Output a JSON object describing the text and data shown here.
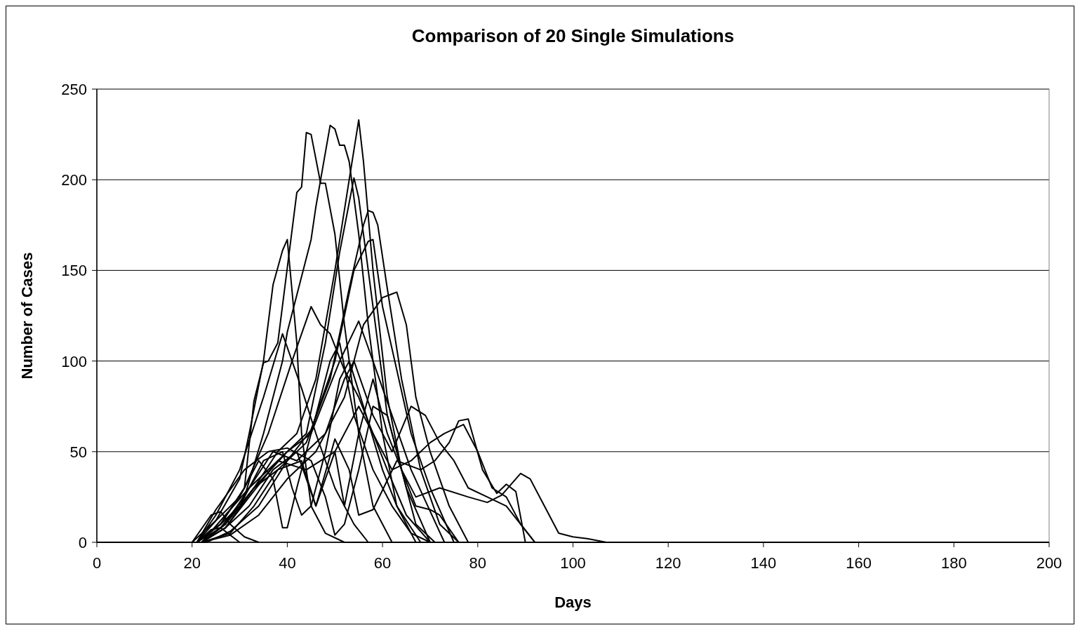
{
  "chart_data": {
    "type": "line",
    "title": "Comparison of 20 Single Simulations",
    "xlabel": "Days",
    "ylabel": "Number of Cases",
    "xlim": [
      0,
      200
    ],
    "xticks": [
      0,
      20,
      40,
      60,
      80,
      100,
      120,
      140,
      160,
      180,
      200
    ],
    "ylim": [
      0,
      250
    ],
    "yticks": [
      0,
      50,
      100,
      150,
      200,
      250
    ],
    "grid": "y",
    "marker": "none",
    "line_style": "solid",
    "series": [
      {
        "color": "#000000",
        "x": [
          0,
          20,
          25,
          30,
          32,
          35,
          37,
          39,
          40,
          42,
          43,
          45,
          48,
          52,
          200
        ],
        "values": [
          0,
          0,
          12,
          35,
          60,
          100,
          142,
          161,
          167,
          110,
          60,
          20,
          5,
          0,
          0
        ]
      },
      {
        "color": "#000000",
        "x": [
          0,
          21,
          26,
          31,
          33,
          35,
          36,
          38,
          42,
          43,
          44,
          45,
          47,
          48,
          50,
          52,
          55,
          58,
          62,
          200
        ],
        "values": [
          0,
          0,
          10,
          30,
          78,
          99,
          100,
          110,
          193,
          196,
          226,
          225,
          198,
          198,
          170,
          120,
          60,
          20,
          0,
          0
        ]
      },
      {
        "color": "#000000",
        "x": [
          0,
          21,
          26,
          31,
          35,
          39,
          40,
          45,
          46,
          47,
          49,
          50,
          51,
          52,
          53,
          55,
          57,
          60,
          63,
          67,
          200
        ],
        "values": [
          0,
          0,
          8,
          25,
          60,
          100,
          116,
          167,
          185,
          200,
          230,
          228,
          219,
          219,
          210,
          170,
          120,
          60,
          20,
          0,
          0
        ]
      },
      {
        "color": "#000000",
        "x": [
          0,
          22,
          27,
          33,
          38,
          42,
          46,
          50,
          53,
          55,
          56,
          58,
          61,
          64,
          67,
          71,
          200
        ],
        "values": [
          0,
          0,
          10,
          30,
          50,
          60,
          90,
          150,
          200,
          233,
          210,
          150,
          80,
          40,
          10,
          0,
          0
        ]
      },
      {
        "color": "#000000",
        "x": [
          0,
          22,
          27,
          32,
          38,
          44,
          48,
          51,
          54,
          55,
          58,
          61,
          65,
          70,
          200
        ],
        "values": [
          0,
          0,
          8,
          25,
          45,
          60,
          110,
          160,
          201,
          190,
          130,
          70,
          30,
          0,
          0
        ]
      },
      {
        "color": "#000000",
        "x": [
          0,
          22,
          28,
          33,
          38,
          44,
          49,
          53,
          56,
          57,
          58,
          59,
          61,
          64,
          68,
          72,
          76,
          200
        ],
        "values": [
          0,
          0,
          5,
          20,
          40,
          55,
          90,
          140,
          175,
          183,
          182,
          175,
          140,
          90,
          40,
          10,
          0,
          0
        ]
      },
      {
        "color": "#000000",
        "x": [
          0,
          23,
          28,
          34,
          40,
          45,
          50,
          54,
          57,
          58,
          60,
          63,
          66,
          70,
          75,
          200
        ],
        "values": [
          0,
          0,
          6,
          20,
          45,
          62,
          100,
          150,
          166,
          167,
          130,
          95,
          60,
          30,
          0,
          0
        ]
      },
      {
        "color": "#000000",
        "x": [
          0,
          22,
          28,
          34,
          40,
          46,
          52,
          56,
          60,
          62,
          63,
          65,
          67,
          70,
          74,
          78,
          200
        ],
        "values": [
          0,
          0,
          4,
          15,
          35,
          50,
          80,
          120,
          135,
          137,
          138,
          120,
          80,
          50,
          20,
          0,
          0
        ]
      },
      {
        "color": "#000000",
        "x": [
          0,
          21,
          26,
          31,
          36,
          41,
          45,
          47,
          49,
          52,
          55,
          58,
          61,
          65,
          70,
          200
        ],
        "values": [
          0,
          0,
          10,
          30,
          60,
          100,
          130,
          120,
          115,
          95,
          80,
          60,
          40,
          15,
          0,
          0
        ]
      },
      {
        "color": "#000000",
        "x": [
          0,
          21,
          25,
          30,
          35,
          39,
          41,
          43,
          46,
          50,
          54,
          57,
          200
        ],
        "values": [
          0,
          0,
          15,
          40,
          80,
          115,
          100,
          85,
          60,
          30,
          10,
          0,
          0
        ]
      },
      {
        "color": "#000000",
        "x": [
          0,
          22,
          27,
          33,
          40,
          45,
          51,
          55,
          58,
          62,
          66,
          73,
          200
        ],
        "values": [
          0,
          0,
          8,
          30,
          50,
          60,
          100,
          122,
          100,
          70,
          40,
          0,
          0
        ]
      },
      {
        "color": "#000000",
        "x": [
          0,
          22,
          27,
          32,
          37,
          42,
          48,
          52,
          54,
          58,
          62,
          66,
          69,
          72,
          75,
          78,
          82,
          86,
          92,
          200
        ],
        "values": [
          0,
          0,
          10,
          30,
          50,
          45,
          60,
          90,
          100,
          70,
          50,
          75,
          70,
          55,
          45,
          30,
          25,
          20,
          0,
          0
        ]
      },
      {
        "color": "#000000",
        "x": [
          0,
          22,
          26,
          32,
          38,
          44,
          50,
          52,
          55,
          58,
          61,
          64,
          67,
          72,
          78,
          82,
          85,
          89,
          91,
          94,
          97,
          100,
          103,
          107,
          200
        ],
        "values": [
          0,
          0,
          12,
          30,
          45,
          40,
          50,
          20,
          60,
          90,
          60,
          40,
          25,
          30,
          25,
          22,
          26,
          38,
          35,
          20,
          5,
          3,
          2,
          0,
          0
        ]
      },
      {
        "color": "#000000",
        "x": [
          0,
          22,
          27,
          33,
          38,
          43,
          46,
          50,
          53,
          55,
          58,
          63,
          68,
          71,
          74,
          76,
          78,
          81,
          84,
          86,
          88,
          90,
          200
        ],
        "values": [
          0,
          0,
          10,
          30,
          40,
          45,
          20,
          57,
          40,
          15,
          18,
          45,
          40,
          45,
          55,
          67,
          68,
          40,
          27,
          32,
          28,
          0,
          0
        ]
      },
      {
        "color": "#000000",
        "x": [
          0,
          22,
          27,
          32,
          37,
          42,
          46,
          50,
          55,
          58,
          62,
          66,
          70,
          73,
          77,
          80,
          83,
          86,
          89,
          92,
          200
        ],
        "values": [
          0,
          0,
          8,
          20,
          40,
          50,
          20,
          50,
          75,
          60,
          40,
          45,
          55,
          60,
          65,
          50,
          30,
          25,
          10,
          0,
          0
        ]
      },
      {
        "color": "#000000",
        "x": [
          0,
          21,
          25,
          30,
          34,
          37,
          39,
          40,
          42,
          45,
          49,
          51,
          54,
          58,
          62,
          66,
          70,
          200
        ],
        "values": [
          0,
          0,
          12,
          25,
          45,
          35,
          8,
          8,
          30,
          60,
          100,
          110,
          70,
          40,
          20,
          5,
          0,
          0
        ]
      },
      {
        "color": "#000000",
        "x": [
          0,
          21,
          26,
          30,
          35,
          39,
          41,
          43,
          45,
          48,
          51,
          53,
          56,
          60,
          63,
          68,
          200
        ],
        "values": [
          0,
          0,
          10,
          20,
          45,
          50,
          30,
          15,
          20,
          50,
          90,
          100,
          75,
          40,
          20,
          0,
          0
        ]
      },
      {
        "color": "#000000",
        "x": [
          0,
          21,
          25,
          31,
          36,
          40,
          45,
          48,
          50,
          52,
          55,
          58,
          61,
          64,
          67,
          70,
          72,
          76,
          200
        ],
        "values": [
          0,
          0,
          18,
          40,
          50,
          52,
          45,
          25,
          4,
          10,
          40,
          75,
          70,
          40,
          20,
          18,
          15,
          0,
          0
        ]
      },
      {
        "color": "#000000",
        "x": [
          20,
          24,
          26,
          28,
          31,
          34
        ],
        "values": [
          0,
          15,
          17,
          10,
          3,
          0
        ]
      },
      {
        "color": "#000000",
        "x": [
          21,
          24,
          26,
          28,
          30
        ],
        "values": [
          0,
          7,
          8,
          4,
          0
        ]
      }
    ]
  }
}
